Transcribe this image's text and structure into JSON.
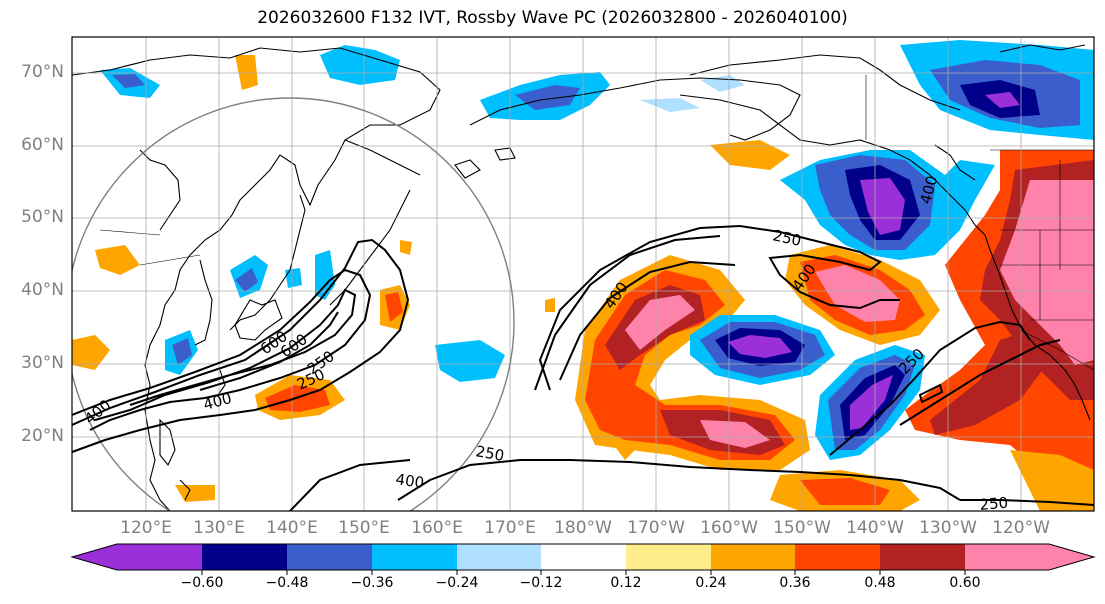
{
  "title": "2026032600 F132 IVT, Rossby Wave PC (2026032800 - 2026040100)",
  "map": {
    "lat_labels": [
      "70°N",
      "60°N",
      "50°N",
      "40°N",
      "30°N",
      "20°N"
    ],
    "lon_labels": [
      "120°E",
      "130°E",
      "140°E",
      "150°E",
      "160°E",
      "170°E",
      "180°W",
      "170°W",
      "160°W",
      "150°W",
      "140°W",
      "130°W",
      "120°W"
    ],
    "contour_labels": [
      "250",
      "400",
      "400",
      "600",
      "600",
      "250",
      "400",
      "250",
      "400",
      "400",
      "250",
      "250",
      "400",
      "250"
    ]
  },
  "colorbar": {
    "ticks": [
      "−0.60",
      "−0.48",
      "−0.36",
      "−0.24",
      "−0.12",
      "0.12",
      "0.24",
      "0.36",
      "0.48",
      "0.60"
    ],
    "colors": {
      "lt_m072": "#9b30d8",
      "m072_m060": "#9b30d8",
      "m060_m048": "#00008b",
      "m048_m036": "#3a5fcd",
      "m036_m024": "#00bfff",
      "m024_m012": "#b0e0ff",
      "m012_p012": "#ffffff",
      "p012_p024": "#ffec8b",
      "p024_p036": "#ffa500",
      "p036_p048": "#ff4500",
      "p048_p060": "#b22222",
      "gt_p060": "#ff82ab"
    }
  }
}
